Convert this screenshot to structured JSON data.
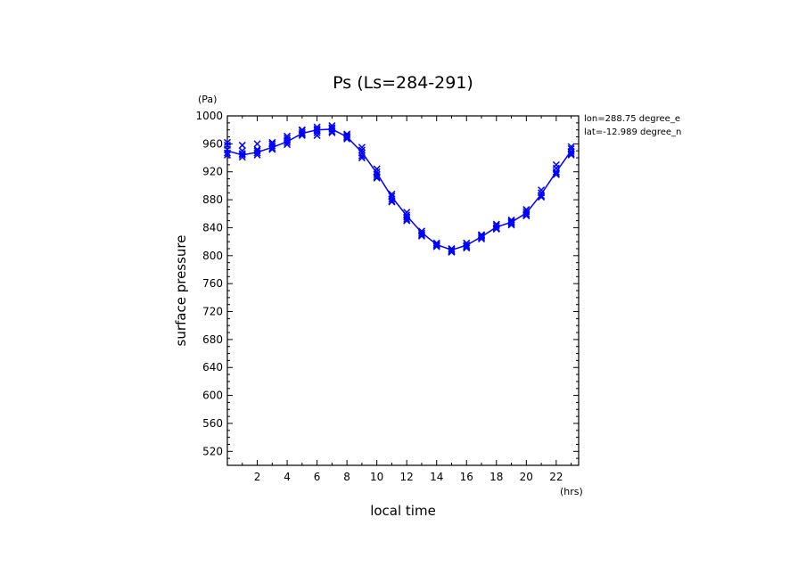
{
  "chart_data": {
    "type": "scatter",
    "title": "Ps (Ls=284-291)",
    "xlabel": "local time",
    "ylabel": "surface pressure",
    "x_unit": "(hrs)",
    "y_unit": "(Pa)",
    "xlim": [
      0,
      23.5
    ],
    "ylim": [
      500,
      1000
    ],
    "x_ticks": [
      2,
      4,
      6,
      8,
      10,
      12,
      14,
      16,
      18,
      20,
      22
    ],
    "y_ticks": [
      520,
      560,
      600,
      640,
      680,
      720,
      760,
      800,
      840,
      880,
      920,
      960,
      1000
    ],
    "annotations": [
      "lon=288.75 degree_e",
      "lat=-12.989 degree_n"
    ],
    "color": "#0000ff",
    "x": [
      0,
      1,
      2,
      3,
      4,
      5,
      6,
      7,
      8,
      9,
      10,
      11,
      12,
      13,
      14,
      15,
      16,
      17,
      18,
      19,
      20,
      21,
      22,
      23
    ],
    "mean_line": [
      950,
      944,
      948,
      955,
      963,
      975,
      980,
      981,
      970,
      948,
      918,
      884,
      857,
      833,
      816,
      808,
      815,
      827,
      841,
      848,
      861,
      888,
      920,
      950
    ],
    "scatter_series": [
      {
        "values": [
          962,
          950,
          952,
          960,
          968,
          979,
          984,
          986,
          974,
          955,
          924,
          888,
          862,
          835,
          818,
          810,
          818,
          830,
          845,
          851,
          866,
          894,
          930,
          956
        ]
      },
      {
        "values": [
          958,
          946,
          950,
          957,
          965,
          976,
          981,
          983,
          972,
          951,
          920,
          885,
          858,
          832,
          816,
          807,
          815,
          828,
          843,
          849,
          863,
          890,
          925,
          953
        ]
      },
      {
        "values": [
          952,
          944,
          947,
          954,
          962,
          974,
          979,
          981,
          969,
          947,
          916,
          881,
          855,
          830,
          814,
          806,
          813,
          826,
          840,
          846,
          860,
          886,
          920,
          949
        ]
      },
      {
        "values": [
          947,
          941,
          944,
          952,
          959,
          972,
          976,
          978,
          967,
          943,
          913,
          878,
          852,
          828,
          813,
          805,
          811,
          824,
          838,
          844,
          857,
          884,
          916,
          946
        ]
      },
      {
        "values": [
          944,
          958,
          960,
          962,
          971,
          980,
          972,
          976,
          970,
          940,
          911,
          877,
          850,
          835,
          816,
          809,
          813,
          829,
          839,
          848,
          858,
          884,
          918,
          944
        ]
      }
    ]
  }
}
